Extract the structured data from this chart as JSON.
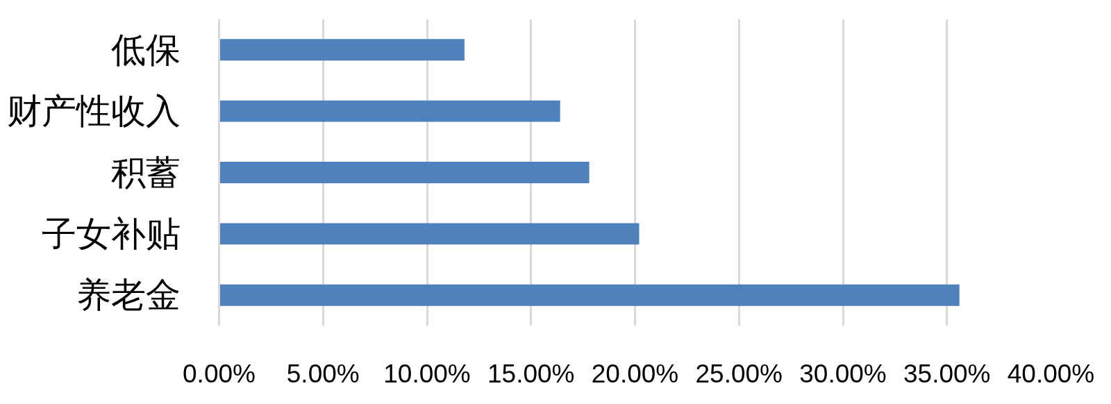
{
  "chart_data": {
    "type": "bar",
    "orientation": "horizontal",
    "categories": [
      "低保",
      "财产性收入",
      "积蓄",
      "子女补贴",
      "养老金"
    ],
    "values": [
      11.8,
      16.4,
      17.8,
      20.2,
      35.6
    ],
    "color": "#4f81bd",
    "xlim": [
      0,
      40
    ],
    "xticks": [
      {
        "value": 0,
        "label": "0.00%"
      },
      {
        "value": 5,
        "label": "5.00%"
      },
      {
        "value": 10,
        "label": "10.00%"
      },
      {
        "value": 15,
        "label": "15.00%"
      },
      {
        "value": 20,
        "label": "20.00%"
      },
      {
        "value": 25,
        "label": "25.00%"
      },
      {
        "value": 30,
        "label": "30.00%"
      },
      {
        "value": 35,
        "label": "35.00%"
      },
      {
        "value": 40,
        "label": "40.00%"
      }
    ],
    "grid": "x"
  }
}
